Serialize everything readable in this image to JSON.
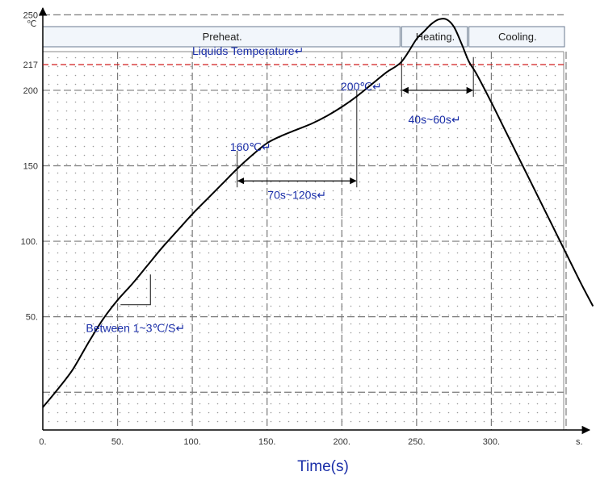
{
  "chart_data": {
    "type": "line",
    "y_unit": "℃",
    "x_unit": "s.",
    "xlabel": "Time(s)",
    "xlim": [
      0,
      370
    ],
    "ylim": [
      -25,
      255
    ],
    "x_ticks": [
      {
        "value": 0,
        "label": "0."
      },
      {
        "value": 50,
        "label": "50."
      },
      {
        "value": 100,
        "label": "100."
      },
      {
        "value": 150,
        "label": "150."
      },
      {
        "value": 200,
        "label": "200."
      },
      {
        "value": 250,
        "label": "250."
      },
      {
        "value": 300,
        "label": "300."
      }
    ],
    "y_ticks": [
      {
        "value": 50,
        "label": "50."
      },
      {
        "value": 100,
        "label": "100."
      },
      {
        "value": 150,
        "label": "150"
      },
      {
        "value": 200,
        "label": "200"
      },
      {
        "value": 217,
        "label": "217"
      },
      {
        "value": 250,
        "label": "250"
      }
    ],
    "x_gridlines": [
      50,
      100,
      150,
      200,
      250,
      300,
      350
    ],
    "y_gridlines": [
      0,
      50,
      100,
      150,
      200,
      250
    ],
    "phases": [
      {
        "label": "Preheat.",
        "x_start": 0,
        "x_end": 240
      },
      {
        "label": "Heating.",
        "x_start": 240,
        "x_end": 285
      },
      {
        "label": "Cooling.",
        "x_start": 285,
        "x_end": 350
      }
    ],
    "series": [
      {
        "x": [
          0,
          10,
          20,
          30,
          40,
          50,
          60,
          70,
          80,
          90,
          100,
          110,
          120,
          130,
          140,
          150,
          160,
          170,
          180,
          190,
          200,
          210,
          220,
          230,
          240,
          250,
          255,
          260,
          265,
          270,
          275,
          280,
          285,
          290,
          300,
          310,
          320,
          330,
          340,
          350,
          360,
          368
        ],
        "y": [
          -10,
          2,
          15,
          32,
          48,
          61,
          72,
          84,
          96,
          107,
          118,
          128,
          138,
          148,
          157,
          165,
          170,
          174,
          178,
          183,
          189,
          196,
          204,
          212,
          219,
          234,
          239,
          244,
          247,
          247,
          242,
          231,
          219,
          211,
          192,
          172,
          152,
          132,
          112,
          92,
          72,
          57
        ]
      }
    ],
    "reference_lines": [
      {
        "y": 217,
        "label": "Liquids Temperature↵",
        "color": "#d11a1a",
        "style": "dashed"
      }
    ],
    "annotations": [
      {
        "text": "160℃↵",
        "x": 139,
        "y": 160
      },
      {
        "text": "200℃↵",
        "x": 213,
        "y": 200
      },
      {
        "text": "Between 1~3℃/S↵",
        "x": 62,
        "y": 40
      },
      {
        "text": "70s~120s↵",
        "x": 170,
        "y": 128
      },
      {
        "text": "40s~60s↵",
        "x": 262,
        "y": 178
      }
    ],
    "slope_marker": {
      "x1": 52,
      "y1": 58,
      "x2": 72,
      "y2": 78
    },
    "brackets": [
      {
        "x1": 130,
        "x2": 210,
        "y_bar": 140,
        "y_top": 160,
        "left_tick_top": 160,
        "right_tick_top": 200
      },
      {
        "x1": 240,
        "x2": 288,
        "y_bar": 200,
        "y_top": 222
      }
    ],
    "grid": true,
    "dotted_background": true
  }
}
